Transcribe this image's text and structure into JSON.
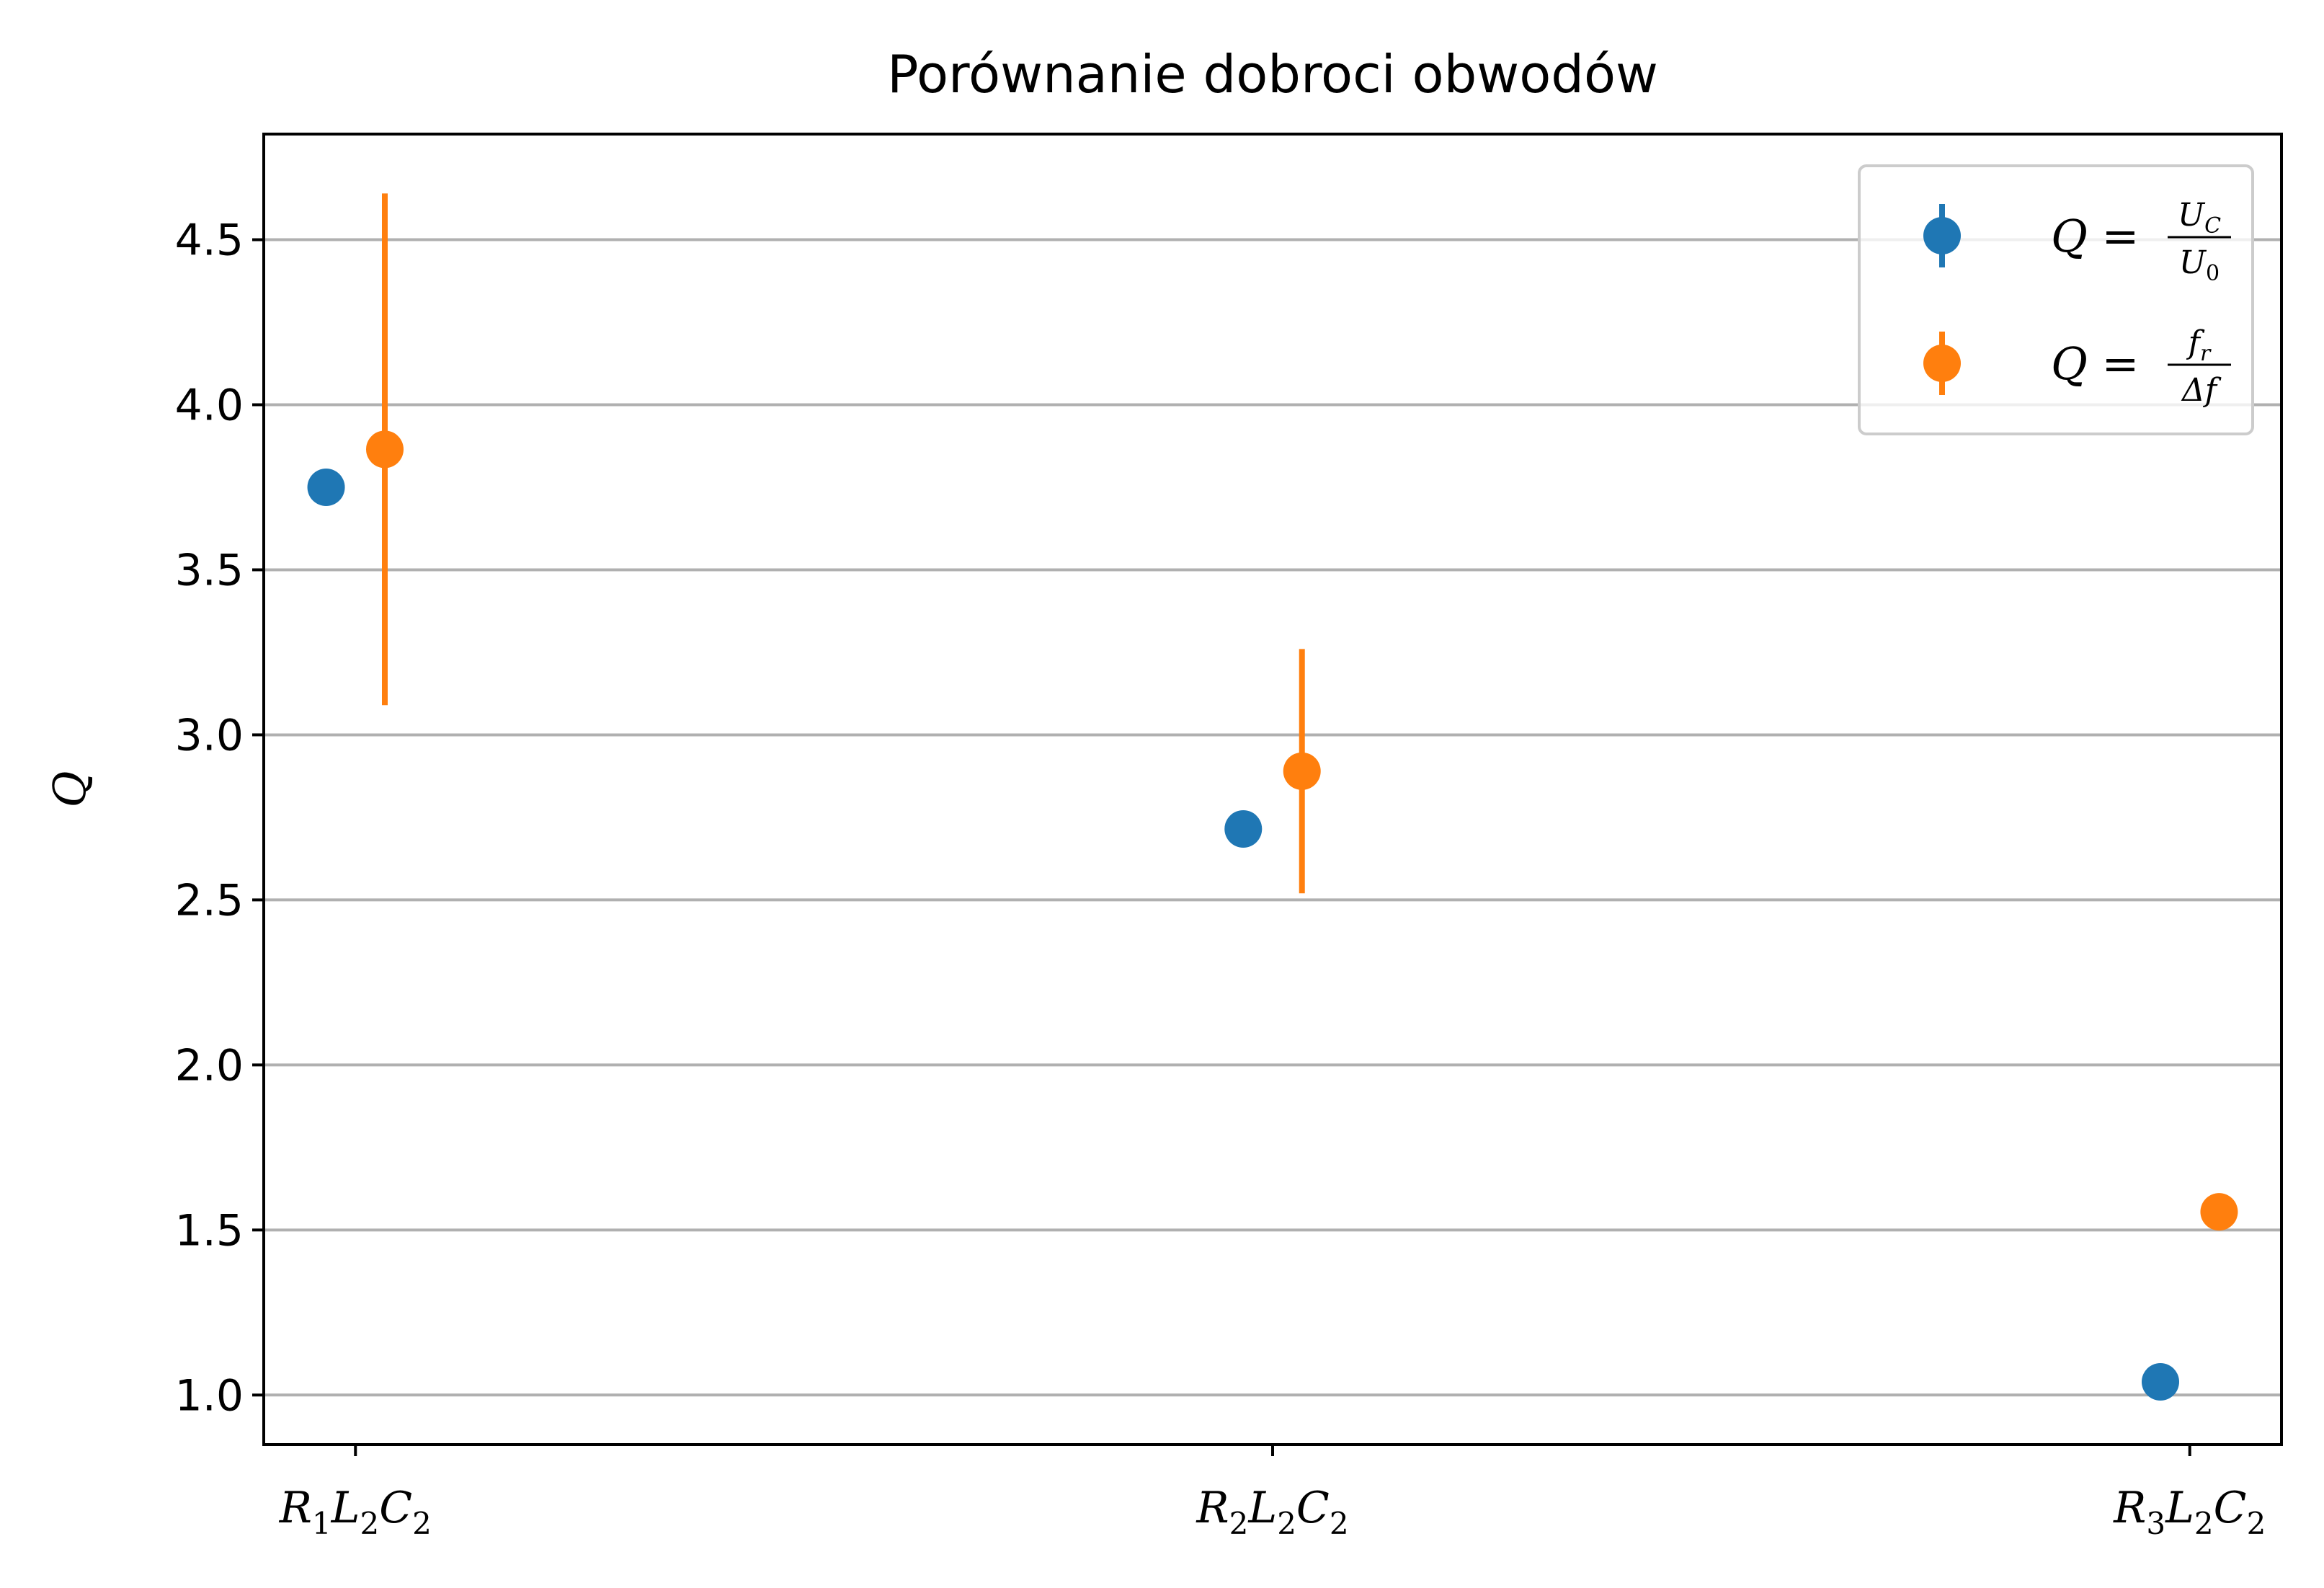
{
  "chart_data": {
    "type": "scatter",
    "title": "Porównanie dobroci obwodów",
    "xlabel": "",
    "ylabel": "Q",
    "categories": [
      "R1L2C2",
      "R2L2C2",
      "R3L2C2"
    ],
    "category_labels": [
      {
        "main": "R",
        "sub1": "1",
        "mid": "L",
        "sub2": "2",
        "end": "C",
        "sub3": "2"
      },
      {
        "main": "R",
        "sub1": "2",
        "mid": "L",
        "sub2": "2",
        "end": "C",
        "sub3": "2"
      },
      {
        "main": "R",
        "sub1": "3",
        "mid": "L",
        "sub2": "2",
        "end": "C",
        "sub3": "2"
      }
    ],
    "ylim": [
      0.85,
      4.82
    ],
    "yticks": [
      1.0,
      1.5,
      2.0,
      2.5,
      3.0,
      3.5,
      4.0,
      4.5
    ],
    "ytick_labels": [
      "1.0",
      "1.5",
      "2.0",
      "2.5",
      "3.0",
      "3.5",
      "4.0",
      "4.5"
    ],
    "grid": "horizontal",
    "legend_position": "top-right",
    "series": [
      {
        "name": "Q = U_C / U_0",
        "legend_label": {
          "lhs": "Q =",
          "num": "U",
          "num_sub": "C",
          "den": "U",
          "den_sub": "0"
        },
        "color": "#1f77b4",
        "offset": -0.032,
        "values": [
          3.75,
          2.715,
          1.04
        ],
        "errors": [
          0.03,
          0.0,
          0.0
        ]
      },
      {
        "name": "Q = f_r / Δf",
        "legend_label": {
          "lhs": "Q =",
          "num": "f",
          "num_sub": "r",
          "den": "Δf",
          "den_sub": ""
        },
        "color": "#ff7f0e",
        "offset": 0.032,
        "values": [
          3.865,
          2.89,
          1.555
        ],
        "errors": [
          0.775,
          0.37,
          0.0
        ]
      }
    ]
  }
}
